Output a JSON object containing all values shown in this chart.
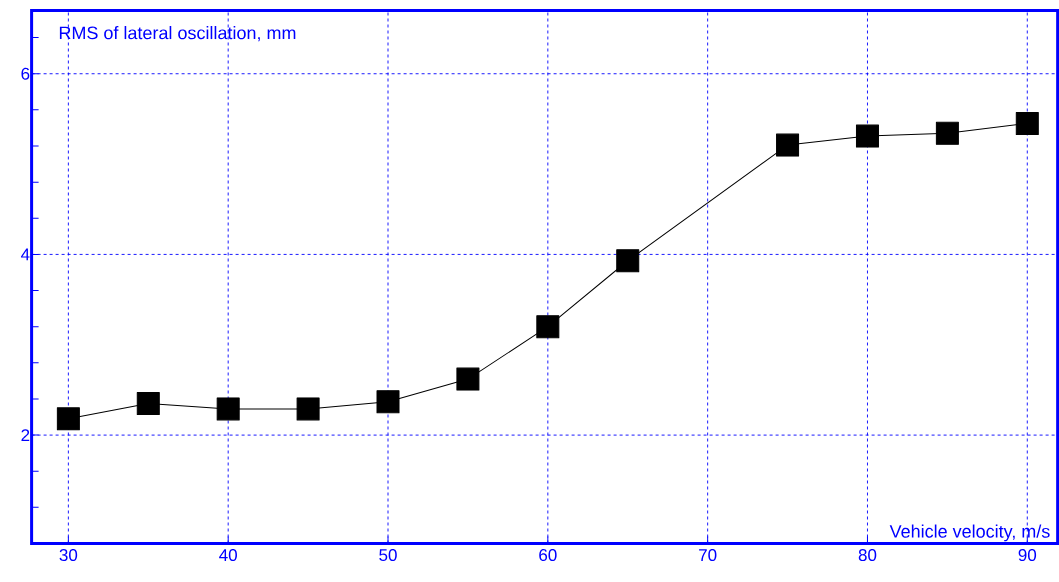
{
  "chart_data": {
    "type": "line",
    "xlabel": "Vehicle velocity, m/s",
    "ylabel": "RMS of lateral oscillation, mm",
    "x": [
      30,
      35,
      40,
      45,
      50,
      55,
      60,
      65,
      75,
      80,
      85,
      90
    ],
    "series": [
      {
        "color": "#000000",
        "values": [
          2.18,
          2.35,
          2.29,
          2.29,
          2.37,
          2.62,
          3.2,
          3.93,
          5.21,
          5.31,
          5.34,
          5.45
        ]
      }
    ],
    "xlim": [
      27.7,
      91.9
    ],
    "ylim": [
      0.8,
      6.7
    ],
    "xticks": [
      30,
      40,
      50,
      60,
      70,
      80,
      90
    ],
    "yticks": [
      {
        "value": 1.2,
        "label": null
      },
      {
        "value": 1.6,
        "label": null
      },
      2,
      {
        "value": 2.4,
        "label": null
      },
      {
        "value": 2.8,
        "label": null
      },
      {
        "value": 3.2,
        "label": null
      },
      {
        "value": 3.6,
        "label": null
      },
      4,
      {
        "value": 4.4,
        "label": null
      },
      {
        "value": 4.8,
        "label": null
      },
      {
        "value": 5.2,
        "label": null
      },
      {
        "value": 5.6,
        "label": null
      },
      6,
      {
        "value": 6.4,
        "label": null
      }
    ],
    "grid": true,
    "marker": "square",
    "line_style": "solid"
  }
}
